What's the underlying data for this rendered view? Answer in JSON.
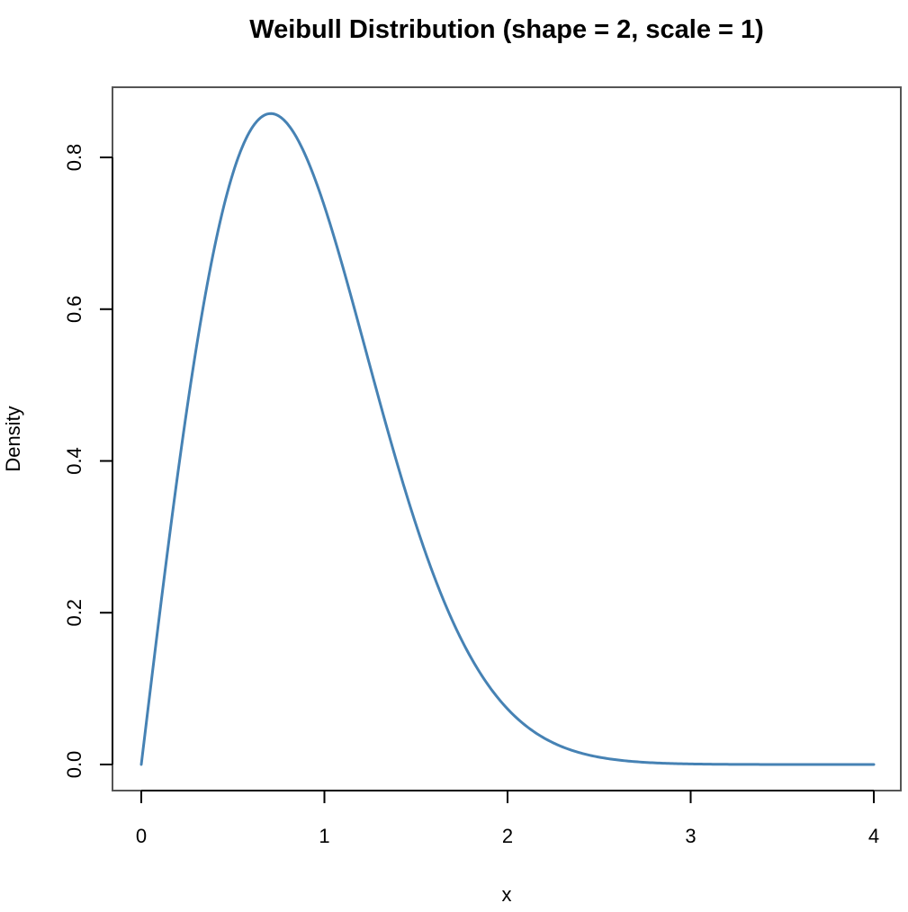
{
  "chart_data": {
    "type": "line",
    "title": "Weibull Distribution (shape = 2, scale = 1)",
    "xlabel": "x",
    "ylabel": "Density",
    "xlim": [
      0,
      4
    ],
    "ylim": [
      0,
      0.86
    ],
    "x_ticks": [
      "0",
      "1",
      "2",
      "3",
      "4"
    ],
    "y_ticks": [
      "0.0",
      "0.2",
      "0.4",
      "0.6",
      "0.8"
    ],
    "grid": false,
    "legend": "none",
    "series": [
      {
        "color": "#4682B4",
        "x": [
          0,
          0.1,
          0.2,
          0.3,
          0.4,
          0.5,
          0.6,
          0.7,
          0.8,
          0.9,
          1.0,
          1.1,
          1.2,
          1.3,
          1.4,
          1.5,
          1.6,
          1.7,
          1.8,
          1.9,
          2.0,
          2.2,
          2.4,
          2.6,
          2.8,
          3.0,
          3.2,
          3.4,
          3.6,
          3.8,
          4.0
        ],
        "y": [
          0,
          0.198,
          0.384,
          0.548,
          0.682,
          0.779,
          0.837,
          0.859,
          0.844,
          0.802,
          0.736,
          0.656,
          0.569,
          0.481,
          0.395,
          0.316,
          0.247,
          0.189,
          0.141,
          0.103,
          0.073,
          0.035,
          0.015,
          0.006,
          0.002,
          0.001,
          0.0002,
          0.0,
          0.0,
          0.0,
          0.0
        ]
      }
    ]
  }
}
